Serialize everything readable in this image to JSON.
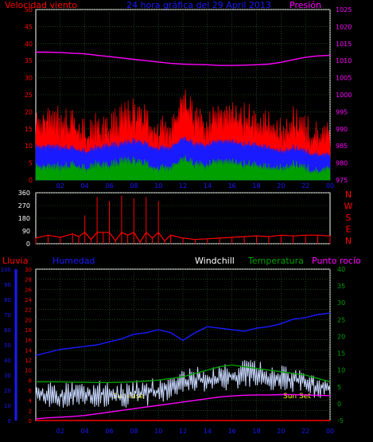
{
  "header": {
    "left_label": "Velocidad viento",
    "center_title": "24 hora gráfica del   29 April 2013",
    "right_label": "Presión"
  },
  "colors": {
    "red": "#ff0000",
    "blue": "#1a1aff",
    "green": "#00a000",
    "magenta": "#ff00ff",
    "lightblue": "#c8d8ff",
    "yellow": "#ffff00",
    "grid": "#2f6f2f",
    "white": "#ffffff"
  },
  "chart_data": [
    {
      "type": "line",
      "id": "wind-pressure",
      "x_ticks": [
        "02",
        "04",
        "06",
        "08",
        "10",
        "12",
        "14",
        "16",
        "18",
        "20",
        "22",
        "00"
      ],
      "xlim": [
        0,
        24
      ],
      "y_left_ticks": [
        "0",
        "5",
        "10",
        "15",
        "20",
        "25",
        "30",
        "35",
        "40",
        "45",
        "50"
      ],
      "ylim_left": [
        0,
        50
      ],
      "y_right_ticks": [
        "975",
        "980",
        "985",
        "990",
        "995",
        "1000",
        "1005",
        "1010",
        "1015",
        "1020",
        "1025"
      ],
      "ylim_right": [
        975,
        1025
      ],
      "series": [
        {
          "color": "red",
          "axis": "left",
          "x": [
            0,
            1,
            2,
            3,
            4,
            5,
            6,
            7,
            8,
            9,
            10,
            11,
            12,
            13,
            14,
            15,
            16,
            17,
            18,
            19,
            20,
            21,
            22,
            23,
            24
          ],
          "values": [
            13,
            18,
            14,
            15,
            12,
            13,
            14,
            16,
            17,
            15,
            13,
            12,
            22,
            16,
            14,
            17,
            18,
            16,
            15,
            14,
            12,
            15,
            13,
            11,
            12
          ]
        },
        {
          "color": "blue",
          "axis": "left",
          "x": [
            0,
            1,
            2,
            3,
            4,
            5,
            6,
            7,
            8,
            9,
            10,
            11,
            12,
            13,
            14,
            15,
            16,
            17,
            18,
            19,
            20,
            21,
            22,
            23,
            24
          ],
          "values": [
            9,
            10,
            9,
            9,
            8,
            9,
            10,
            10,
            11,
            10,
            9,
            9,
            12,
            10,
            10,
            11,
            11,
            10,
            10,
            9,
            8,
            9,
            8,
            7,
            7
          ]
        },
        {
          "color": "green",
          "axis": "left",
          "x": [
            0,
            1,
            2,
            3,
            4,
            5,
            6,
            7,
            8,
            9,
            10,
            11,
            12,
            13,
            14,
            15,
            16,
            17,
            18,
            19,
            20,
            21,
            22,
            23,
            24
          ],
          "values": [
            3,
            4,
            3,
            4,
            3,
            4,
            4,
            5,
            5,
            4,
            3,
            3,
            6,
            4,
            4,
            5,
            5,
            4,
            4,
            3,
            3,
            4,
            3,
            2,
            3
          ]
        },
        {
          "color": "magenta",
          "axis": "right",
          "x": [
            0,
            1,
            2,
            3,
            4,
            5,
            6,
            7,
            8,
            9,
            10,
            11,
            12,
            13,
            14,
            15,
            16,
            17,
            18,
            19,
            20,
            21,
            22,
            23,
            24
          ],
          "values": [
            1012.5,
            1012.5,
            1012.4,
            1012.2,
            1012.0,
            1011.6,
            1011.2,
            1010.8,
            1010.4,
            1010.0,
            1009.6,
            1009.2,
            1009.0,
            1008.9,
            1008.8,
            1008.6,
            1008.6,
            1008.7,
            1008.8,
            1009.0,
            1009.5,
            1010.3,
            1011.0,
            1011.4,
            1011.6
          ]
        }
      ]
    },
    {
      "type": "scatter",
      "id": "wind-direction",
      "right_labels": [
        "N",
        "W",
        "S",
        "E",
        "N"
      ],
      "y_ticks": [
        "360",
        "270",
        "180",
        "90",
        "0"
      ],
      "ylim": [
        0,
        360
      ],
      "xlim": [
        0,
        24
      ],
      "series": [
        {
          "color": "red",
          "x": [
            0,
            1,
            2,
            3,
            3.5,
            4,
            4.5,
            5,
            5.5,
            6,
            6.5,
            7,
            7.5,
            8,
            8.5,
            9,
            9.5,
            10,
            10.5,
            11,
            12,
            13,
            14,
            15,
            16,
            17,
            18,
            19,
            20,
            21,
            22,
            23,
            24
          ],
          "values": [
            40,
            60,
            45,
            70,
            50,
            200,
            30,
            330,
            80,
            300,
            20,
            340,
            60,
            320,
            10,
            330,
            40,
            300,
            20,
            60,
            40,
            30,
            35,
            40,
            45,
            50,
            55,
            50,
            60,
            55,
            60,
            60,
            55
          ]
        }
      ]
    },
    {
      "type": "line",
      "id": "rain-humidity-temperature",
      "labels": [
        "Lluvia",
        "Humedad",
        "Windchill",
        "Temperatura",
        "Punto rocío"
      ],
      "x_ticks": [
        "02",
        "04",
        "06",
        "08",
        "10",
        "12",
        "14",
        "16",
        "18",
        "20",
        "22",
        "00"
      ],
      "xlim": [
        0,
        24
      ],
      "y_left_ticks": [
        "0",
        "10",
        "20",
        "30",
        "40",
        "50",
        "60",
        "70",
        "80",
        "90",
        "100"
      ],
      "y_mid_ticks": [
        "0",
        "2",
        "4",
        "6",
        "8",
        "10",
        "12",
        "14",
        "16",
        "18",
        "20",
        "22",
        "24",
        "26",
        "28",
        "30"
      ],
      "y_right_ticks": [
        "-5",
        "0",
        "5",
        "10",
        "15",
        "20",
        "25",
        "30",
        "35",
        "40"
      ],
      "ylim_left": [
        0,
        100
      ],
      "ylim_temp": [
        -5,
        40
      ],
      "annotations": [
        "Sun Rise",
        "Sun Set"
      ],
      "series": [
        {
          "color": "blue",
          "axis": "left",
          "name": "Humedad",
          "x": [
            0,
            1,
            2,
            3,
            4,
            5,
            6,
            7,
            8,
            9,
            10,
            11,
            12,
            13,
            14,
            15,
            16,
            17,
            18,
            19,
            20,
            21,
            22,
            23,
            24
          ],
          "values": [
            43,
            45,
            47,
            48,
            49,
            50,
            52,
            54,
            57,
            58,
            60,
            58,
            53,
            58,
            62,
            61,
            60,
            59,
            61,
            62,
            64,
            67,
            68,
            70,
            71
          ]
        },
        {
          "color": "lightblue",
          "axis": "temp",
          "name": "Windchill",
          "x": [
            0,
            1,
            2,
            3,
            4,
            5,
            6,
            7,
            8,
            9,
            10,
            11,
            12,
            13,
            14,
            15,
            16,
            17,
            18,
            19,
            20,
            21,
            22,
            23,
            24
          ],
          "values": [
            2,
            3,
            2,
            3,
            2,
            3,
            3,
            2,
            3,
            3,
            4,
            5,
            6,
            7,
            7,
            8,
            8,
            9,
            9,
            8,
            8,
            7,
            6,
            5,
            4
          ]
        },
        {
          "color": "green",
          "axis": "temp",
          "name": "Temperatura",
          "x": [
            0,
            1,
            2,
            3,
            4,
            5,
            6,
            7,
            8,
            9,
            10,
            11,
            12,
            13,
            14,
            15,
            16,
            17,
            18,
            19,
            20,
            21,
            22,
            23,
            24
          ],
          "values": [
            6.5,
            6.5,
            6.5,
            6.4,
            6.4,
            6.3,
            6.3,
            6.4,
            6.5,
            6.7,
            7.0,
            7.5,
            8.0,
            9.0,
            10.0,
            11.0,
            11.5,
            11.0,
            10.5,
            10.0,
            9.5,
            9.0,
            8.5,
            7.5,
            6.5
          ]
        },
        {
          "color": "magenta",
          "axis": "temp",
          "name": "Punto rocío",
          "x": [
            0,
            1,
            2,
            3,
            4,
            5,
            6,
            7,
            8,
            9,
            10,
            11,
            12,
            13,
            14,
            15,
            16,
            17,
            18,
            19,
            20,
            21,
            22,
            23,
            24
          ],
          "values": [
            -4.5,
            -4.2,
            -4.0,
            -3.8,
            -3.5,
            -3.0,
            -2.5,
            -2.0,
            -1.5,
            -1.0,
            -0.5,
            0.0,
            0.5,
            1.0,
            1.5,
            2.0,
            2.3,
            2.5,
            2.6,
            2.6,
            2.7,
            2.7,
            2.6,
            2.5,
            2.4
          ]
        },
        {
          "color": "red",
          "axis": "left",
          "name": "Lluvia",
          "x": [
            0,
            24
          ],
          "values": [
            0,
            0
          ]
        }
      ]
    }
  ]
}
